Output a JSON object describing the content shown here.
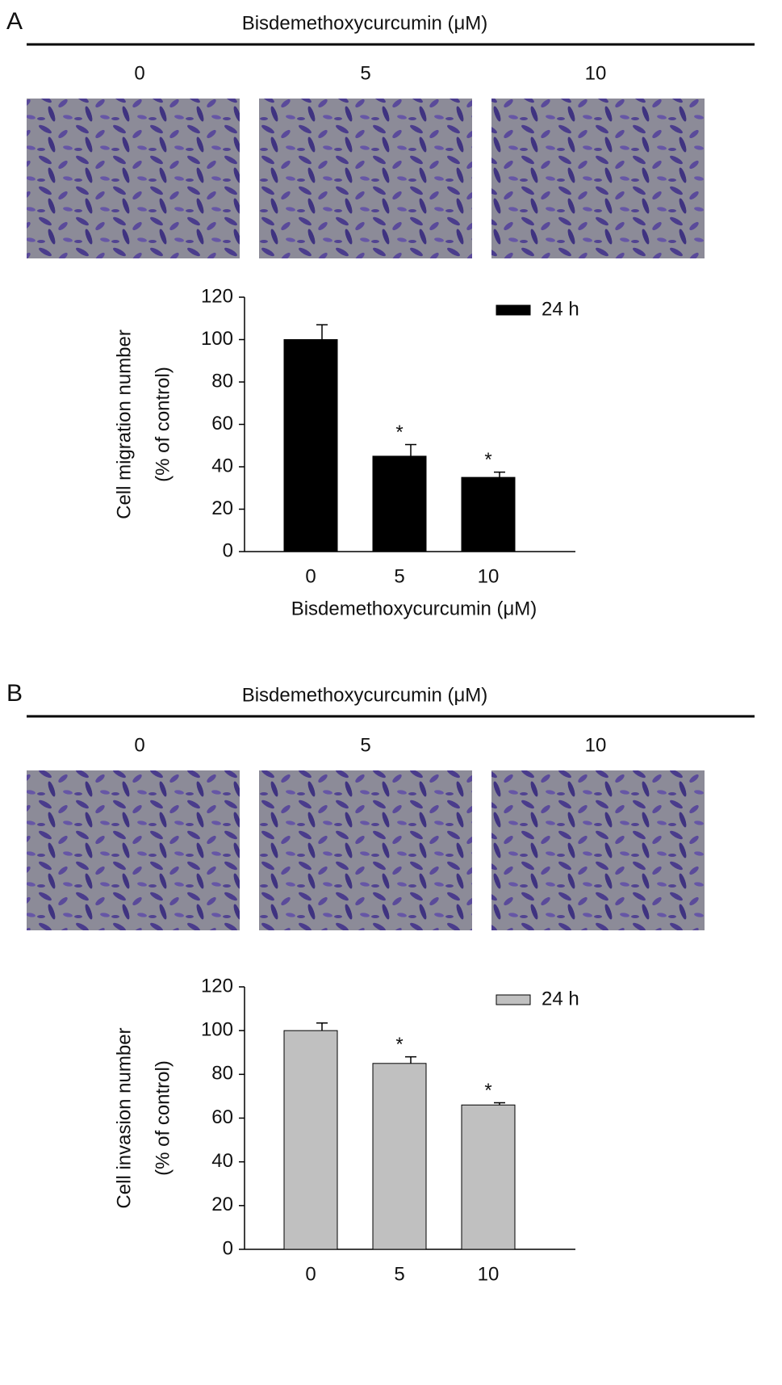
{
  "chart_data": [
    {
      "type": "bar",
      "panel": "A",
      "title": "Bisdemethoxycurcumin (μM)",
      "image_labels": [
        "0",
        "5",
        "10"
      ],
      "categories": [
        "0",
        "5",
        "10"
      ],
      "series": [
        {
          "name": "24 h",
          "color": "#000000",
          "values": [
            100,
            45,
            35
          ],
          "errors": [
            7,
            5.5,
            2.5
          ]
        }
      ],
      "annotations": [
        {
          "x": "5",
          "text": "*"
        },
        {
          "x": "10",
          "text": "*"
        }
      ],
      "ylabel": [
        "Cell migration number",
        "(% of control)"
      ],
      "xlabel": "Bisdemethoxycurcumin (μM)",
      "ylim": [
        0,
        120
      ],
      "yticks": [
        0,
        20,
        40,
        60,
        80,
        100,
        120
      ],
      "legend": "upper right"
    },
    {
      "type": "bar",
      "panel": "B",
      "title": "Bisdemethoxycurcumin (μM)",
      "image_labels": [
        "0",
        "5",
        "10"
      ],
      "categories": [
        "0",
        "5",
        "10"
      ],
      "series": [
        {
          "name": "24 h",
          "color": "#c0c0c0",
          "values": [
            100,
            85,
            66
          ],
          "errors": [
            3.5,
            3,
            1
          ]
        }
      ],
      "annotations": [
        {
          "x": "5",
          "text": "*"
        },
        {
          "x": "10",
          "text": "*"
        }
      ],
      "ylabel": [
        "Cell invasion number",
        "(% of control)"
      ],
      "ylim": [
        0,
        120
      ],
      "yticks": [
        0,
        20,
        40,
        60,
        80,
        100,
        120
      ],
      "legend": "upper right"
    }
  ]
}
